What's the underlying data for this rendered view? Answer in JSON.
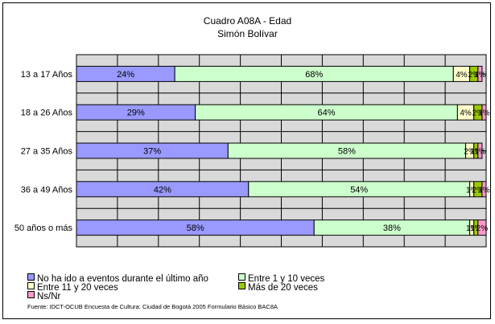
{
  "chart_data": {
    "type": "bar",
    "orientation": "horizontal",
    "stacked": true,
    "title": "Cuadro A08A - Edad",
    "subtitle": "Simón Bolívar",
    "categories": [
      "13 a 17 Años",
      "18 a 26 Años",
      "27 a 35 Años",
      "36 a 49 Años",
      "50 años o más"
    ],
    "series": [
      {
        "name": "No ha ido a eventos durante el último año",
        "values": [
          24,
          29,
          37,
          42,
          58
        ],
        "labels": [
          "24%",
          "29%",
          "37%",
          "42%",
          "58%"
        ],
        "color": "#9999ff"
      },
      {
        "name": "Entre 1 y 10 veces",
        "values": [
          68,
          64,
          58,
          54,
          38
        ],
        "labels": [
          "68%",
          "64%",
          "58%",
          "54%",
          "38%"
        ],
        "color": "#ccffcc"
      },
      {
        "name": "Entre 11 y 20 veces",
        "values": [
          4,
          4,
          2,
          1,
          1
        ],
        "labels": [
          "4%",
          "4%",
          "2%",
          "1%",
          "1%"
        ],
        "color": "#ffffcc"
      },
      {
        "name": "Más de 20 veces",
        "values": [
          2,
          2,
          1,
          2,
          1
        ],
        "labels": [
          "2%",
          "2%",
          "1%",
          "2%",
          "1%"
        ],
        "color": "#99cc00"
      },
      {
        "name": "Ns/Nr",
        "values": [
          1,
          1,
          1,
          1,
          2
        ],
        "labels": [
          "1%",
          "1%",
          "1%",
          "1%",
          "2%"
        ],
        "color": "#ff99cc"
      }
    ],
    "xlim": [
      0,
      100
    ],
    "grid": true,
    "legend_position": "bottom"
  },
  "source": "Fuente: IDCT-OCUB Encuesta de Cultura: Ciudad de Bogotá 2005 Formulario Básico BAC8A"
}
